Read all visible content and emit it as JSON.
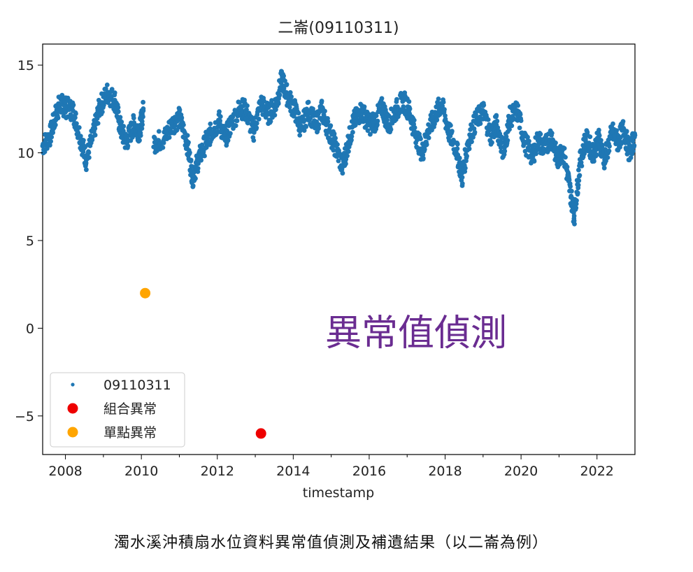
{
  "chart_data": {
    "type": "scatter",
    "title": "二崙(09110311)",
    "xlabel": "timestamp",
    "ylabel": "",
    "xlim": [
      2007.4,
      2023.0
    ],
    "ylim": [
      -7.2,
      16.2
    ],
    "x_ticks": [
      2008,
      2010,
      2012,
      2014,
      2016,
      2018,
      2020,
      2022
    ],
    "y_ticks": [
      -5,
      0,
      5,
      10,
      15
    ],
    "y_tick_labels": [
      "−5",
      "0",
      "5",
      "10",
      "15"
    ],
    "grid": false,
    "legend_position": "lower-left",
    "series": [
      {
        "name": "09110311",
        "color": "#1f77b4",
        "marker": "small-dot",
        "x": [
          2007.4,
          2007.6,
          2007.75,
          2007.85,
          2008.0,
          2008.2,
          2008.4,
          2008.55,
          2008.75,
          2008.9,
          2009.1,
          2009.3,
          2009.45,
          2009.6,
          2009.8,
          2009.95,
          2010.05,
          2010.35,
          2010.6,
          2010.8,
          2011.0,
          2011.2,
          2011.35,
          2011.5,
          2011.7,
          2011.85,
          2012.05,
          2012.2,
          2012.35,
          2012.6,
          2012.75,
          2012.95,
          2013.15,
          2013.35,
          2013.55,
          2013.7,
          2013.85,
          2014.05,
          2014.2,
          2014.4,
          2014.6,
          2014.75,
          2014.95,
          2015.1,
          2015.3,
          2015.45,
          2015.6,
          2015.8,
          2016.0,
          2016.15,
          2016.35,
          2016.5,
          2016.7,
          2016.9,
          2017.05,
          2017.2,
          2017.4,
          2017.55,
          2017.75,
          2017.9,
          2018.1,
          2018.3,
          2018.45,
          2018.6,
          2018.8,
          2019.0,
          2019.2,
          2019.35,
          2019.55,
          2019.7,
          2019.9,
          2020.1,
          2020.3,
          2020.45,
          2020.6,
          2020.8,
          2020.95,
          2021.1,
          2021.25,
          2021.4,
          2021.55,
          2021.7,
          2021.9,
          2022.05,
          2022.2,
          2022.4,
          2022.55,
          2022.7,
          2022.85,
          2023.0
        ],
        "y": [
          10.4,
          11.0,
          12.2,
          12.8,
          12.6,
          12.4,
          10.8,
          9.6,
          11.2,
          12.6,
          13.4,
          13.0,
          11.4,
          10.6,
          11.6,
          11.2,
          12.4,
          10.6,
          10.8,
          11.6,
          12.0,
          10.6,
          8.6,
          9.6,
          10.6,
          11.2,
          11.8,
          10.8,
          11.6,
          12.6,
          12.4,
          11.2,
          12.8,
          12.2,
          12.8,
          14.2,
          13.2,
          12.4,
          11.4,
          12.4,
          11.6,
          12.4,
          11.2,
          10.4,
          9.2,
          10.6,
          11.8,
          12.4,
          11.6,
          11.8,
          12.6,
          11.6,
          12.4,
          13.0,
          12.4,
          11.2,
          10.0,
          11.2,
          12.2,
          12.8,
          11.2,
          10.2,
          8.6,
          10.6,
          11.8,
          12.4,
          11.0,
          11.6,
          10.0,
          12.0,
          12.4,
          10.6,
          9.8,
          10.8,
          10.2,
          11.0,
          9.6,
          10.2,
          8.4,
          6.4,
          9.4,
          10.8,
          10.0,
          10.8,
          9.6,
          11.2,
          10.6,
          11.4,
          10.0,
          11.0
        ]
      },
      {
        "name": "組合異常",
        "color": "#ee0000",
        "marker": "large-dot",
        "x": [
          2013.15
        ],
        "y": [
          -6.0
        ]
      },
      {
        "name": "單點異常",
        "color": "#ffa500",
        "marker": "large-dot",
        "x": [
          2010.1
        ],
        "y": [
          2.0
        ]
      }
    ],
    "annotation": {
      "text": "異常值偵測",
      "color": "#6a2c91"
    }
  },
  "caption": "濁水溪沖積扇水位資料異常值偵測及補遺結果（以二崙為例）"
}
